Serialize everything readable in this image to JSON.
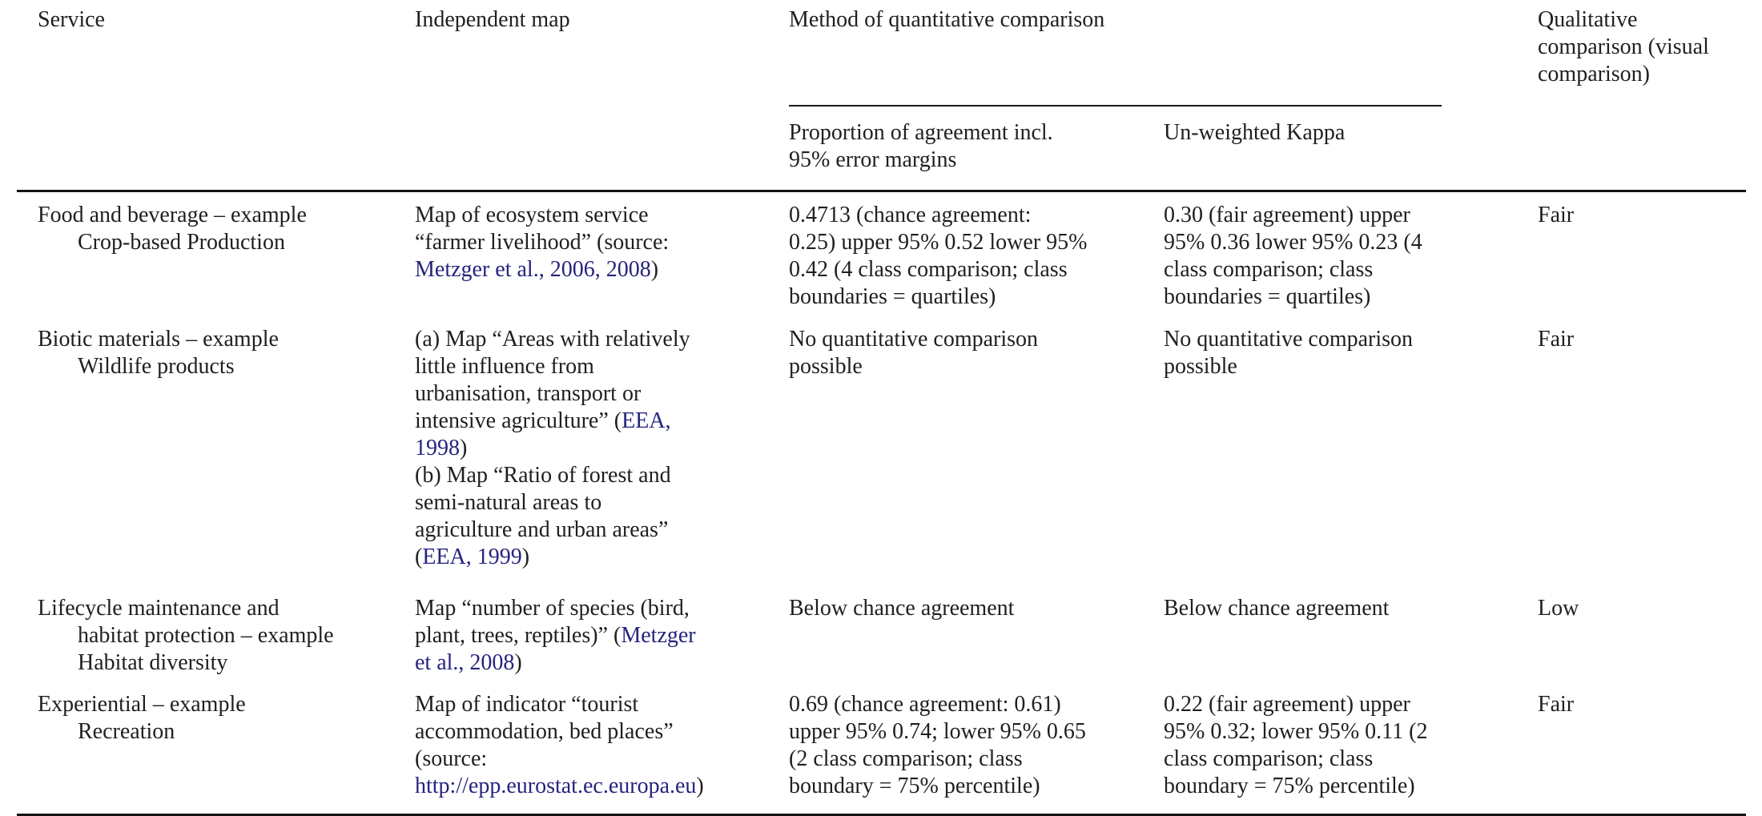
{
  "colors": {
    "text": "#211f1e",
    "link": "#26247e",
    "rule": "#141414",
    "background": "#ffffff"
  },
  "table": {
    "headers": {
      "service": "Service",
      "independent_map": "Independent map",
      "method_group": "Method of quantitative comparison",
      "proportion_lines": [
        "Proportion of agreement incl.",
        "95% error margins"
      ],
      "kappa": "Un-weighted Kappa",
      "qualitative_lines": [
        "Qualitative",
        "comparison (visual",
        "comparison)"
      ]
    },
    "rows": [
      {
        "service_lines": [
          "Food and beverage – example",
          "Crop-based Production"
        ],
        "map_lines": [
          [
            {
              "t": "Map of ecosystem service"
            }
          ],
          [
            {
              "t": "“farmer livelihood” (source:"
            }
          ],
          [
            {
              "t": "Metzger et al., 2006, 2008",
              "link": true
            },
            {
              "t": ")"
            }
          ]
        ],
        "proportion_lines": [
          "0.4713 (chance agreement:",
          "0.25) upper 95% 0.52 lower 95%",
          "0.42 (4 class comparison; class",
          "boundaries = quartiles)"
        ],
        "kappa_lines": [
          "0.30 (fair agreement) upper",
          "95% 0.36 lower 95% 0.23 (4",
          "class comparison; class",
          "boundaries = quartiles)"
        ],
        "qualitative": "Fair"
      },
      {
        "service_lines": [
          "Biotic materials – example",
          "Wildlife products"
        ],
        "map_lines": [
          [
            {
              "t": "(a) Map “Areas with relatively"
            }
          ],
          [
            {
              "t": "little influence from"
            }
          ],
          [
            {
              "t": "urbanisation, transport or"
            }
          ],
          [
            {
              "t": "intensive agriculture” ("
            },
            {
              "t": "EEA,",
              "link": true
            }
          ],
          [
            {
              "t": "1998",
              "link": true
            },
            {
              "t": ")"
            }
          ],
          [
            {
              "t": "(b) Map “Ratio of forest and"
            }
          ],
          [
            {
              "t": "semi-natural areas to"
            }
          ],
          [
            {
              "t": "agriculture and urban areas”"
            }
          ],
          [
            {
              "t": "("
            },
            {
              "t": "EEA, 1999",
              "link": true
            },
            {
              "t": ")"
            }
          ]
        ],
        "proportion_lines": [
          "No quantitative comparison",
          "possible"
        ],
        "kappa_lines": [
          "No quantitative comparison",
          "possible"
        ],
        "qualitative": "Fair"
      },
      {
        "service_lines": [
          "Lifecycle maintenance and",
          "habitat protection – example",
          "Habitat diversity"
        ],
        "map_lines": [
          [
            {
              "t": "Map “number of species (bird,"
            }
          ],
          [
            {
              "t": "plant, trees, reptiles)” ("
            },
            {
              "t": "Metzger",
              "link": true
            }
          ],
          [
            {
              "t": "et al., 2008",
              "link": true
            },
            {
              "t": ")"
            }
          ]
        ],
        "proportion_lines": [
          "Below chance agreement"
        ],
        "kappa_lines": [
          "Below chance agreement"
        ],
        "qualitative": "Low"
      },
      {
        "service_lines": [
          "Experiential – example",
          "Recreation"
        ],
        "map_lines": [
          [
            {
              "t": "Map of indicator “tourist"
            }
          ],
          [
            {
              "t": "accommodation, bed places”"
            }
          ],
          [
            {
              "t": "(source:"
            }
          ],
          [
            {
              "t": "http://epp.eurostat.ec.europa.eu",
              "link": true
            },
            {
              "t": ")"
            }
          ]
        ],
        "proportion_lines": [
          "0.69 (chance agreement: 0.61)",
          "upper 95% 0.74; lower 95% 0.65",
          "(2 class comparison; class",
          "boundary = 75% percentile)"
        ],
        "kappa_lines": [
          "0.22 (fair agreement) upper",
          "95% 0.32; lower 95% 0.11 (2",
          "class comparison; class",
          "boundary = 75% percentile)"
        ],
        "qualitative": "Fair"
      }
    ]
  }
}
